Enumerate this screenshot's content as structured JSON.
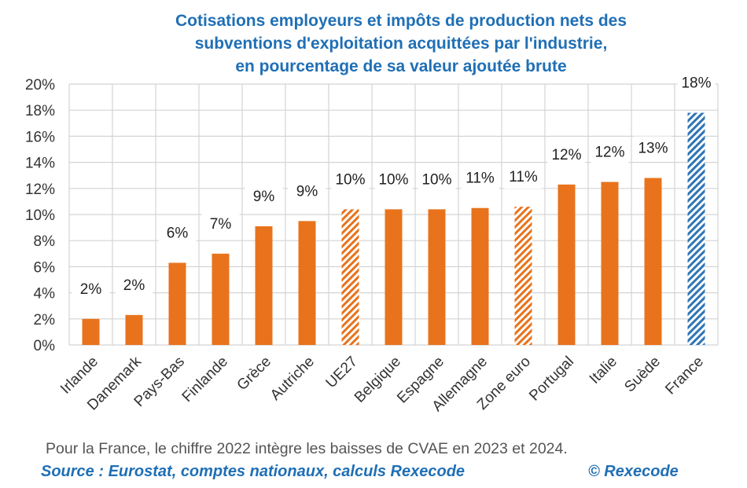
{
  "chart_data": {
    "type": "bar",
    "title": [
      "Cotisations employeurs et impôts de production nets des",
      "subventions d'exploitation acquittées par l'industrie,",
      "en pourcentage de sa valeur ajoutée brute"
    ],
    "categories": [
      "Irlande",
      "Danemark",
      "Pays-Bas",
      "Finlande",
      "Grèce",
      "Autriche",
      "UE27",
      "Belgique",
      "Espagne",
      "Allemagne",
      "Zone euro",
      "Portugal",
      "Italie",
      "Suède",
      "France"
    ],
    "values": [
      2.0,
      2.3,
      6.3,
      7.0,
      9.1,
      9.5,
      10.4,
      10.4,
      10.4,
      10.5,
      10.6,
      12.3,
      12.5,
      12.8,
      17.8
    ],
    "data_labels": [
      "2%",
      "2%",
      "6%",
      "7%",
      "9%",
      "9%",
      "10%",
      "10%",
      "10%",
      "11%",
      "11%",
      "12%",
      "12%",
      "13%",
      "18%"
    ],
    "bar_styles": [
      "solid",
      "solid",
      "solid",
      "solid",
      "solid",
      "solid",
      "hatched",
      "solid",
      "solid",
      "solid",
      "hatched",
      "solid",
      "solid",
      "solid",
      "hatched-blue"
    ],
    "ylim": [
      0,
      20
    ],
    "yticks": [
      "0%",
      "2%",
      "4%",
      "6%",
      "8%",
      "10%",
      "12%",
      "14%",
      "16%",
      "18%",
      "20%"
    ],
    "xlabel": "",
    "ylabel": "",
    "grid": true
  },
  "colors": {
    "bar": "#e8731c",
    "france": "#2e75b6",
    "title": "#1f6fb5",
    "grid": "#d4d4d4"
  },
  "note": "Pour la France, le chiffre 2022 intègre les baisses de CVAE en 2023 et 2024.",
  "source": "Source :  Eurostat, comptes nationaux, calculs Rexecode",
  "copyright": "© Rexecode"
}
